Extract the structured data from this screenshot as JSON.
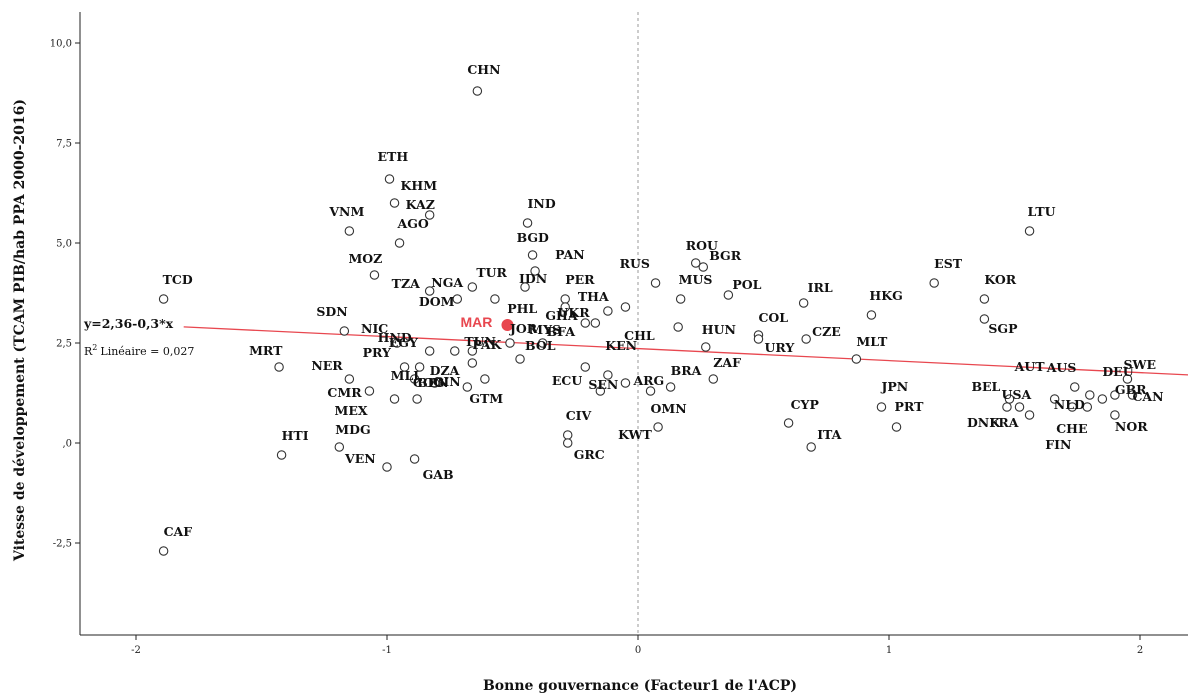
{
  "chart_data": {
    "type": "scatter",
    "xlabel": "Bonne gouvernance (Facteur1 de l'ACP)",
    "ylabel": "Vitesse de développement (TCAM PIB/hab PPA 2000-2016)",
    "xlim": [
      -2.2,
      2.2
    ],
    "ylim": [
      -4.8,
      10.6
    ],
    "xticks": [
      -2,
      -1,
      0,
      1,
      2
    ],
    "xtick_labels": [
      "-2",
      "-1",
      "0",
      "1",
      "2"
    ],
    "yticks": [
      -2.5,
      0,
      2.5,
      5,
      7.5,
      10
    ],
    "ytick_labels": [
      "-2,5",
      ",0",
      "2,5",
      "5,0",
      "7,5",
      "10,0"
    ],
    "reference_line_x": 0,
    "fit_line": {
      "intercept": 2.36,
      "slope": -0.3,
      "equation_label": "y=2,36-0,3*x",
      "r2_label": "Linéaire = 0,027",
      "r2_prefix": "R",
      "r2_sup": "2",
      "color": "#e8474f"
    },
    "highlight": {
      "label": "MAR",
      "x": -0.52,
      "y": 2.95,
      "color": "#e8474f"
    },
    "points": [
      {
        "label": "CHN",
        "x": -0.64,
        "y": 8.8
      },
      {
        "label": "ETH",
        "x": -0.99,
        "y": 6.6
      },
      {
        "label": "KHM",
        "x": -0.97,
        "y": 6.0
      },
      {
        "label": "VNM",
        "x": -1.15,
        "y": 5.3
      },
      {
        "label": "KAZ",
        "x": -0.83,
        "y": 5.7
      },
      {
        "label": "AGO",
        "x": -0.95,
        "y": 5.0
      },
      {
        "label": "MOZ",
        "x": -1.05,
        "y": 4.2
      },
      {
        "label": "TZA",
        "x": -0.83,
        "y": 3.8
      },
      {
        "label": "NGA",
        "x": -0.72,
        "y": 3.6
      },
      {
        "label": "TUR",
        "x": -0.66,
        "y": 3.9
      },
      {
        "label": "DOM",
        "x": -0.57,
        "y": 3.6
      },
      {
        "label": "IND",
        "x": -0.44,
        "y": 5.5
      },
      {
        "label": "BGD",
        "x": -0.42,
        "y": 4.7
      },
      {
        "label": "PAN",
        "x": -0.41,
        "y": 4.3
      },
      {
        "label": "IDN",
        "x": -0.45,
        "y": 3.9
      },
      {
        "label": "PER",
        "x": -0.29,
        "y": 3.6
      },
      {
        "label": "PHL",
        "x": -0.29,
        "y": 3.4
      },
      {
        "label": "RUS",
        "x": 0.07,
        "y": 4.0
      },
      {
        "label": "THA",
        "x": -0.12,
        "y": 3.3
      },
      {
        "label": "UKR",
        "x": -0.05,
        "y": 3.4
      },
      {
        "label": "MUS",
        "x": 0.17,
        "y": 3.6
      },
      {
        "label": "ROU",
        "x": 0.23,
        "y": 4.5
      },
      {
        "label": "BGR",
        "x": 0.26,
        "y": 4.4
      },
      {
        "label": "POL",
        "x": 0.36,
        "y": 3.7
      },
      {
        "label": "GHA",
        "x": -0.17,
        "y": 3.0
      },
      {
        "label": "MYS",
        "x": -0.21,
        "y": 3.0
      },
      {
        "label": "CHL",
        "x": 0.16,
        "y": 2.9
      },
      {
        "label": "SDN",
        "x": -1.17,
        "y": 2.8
      },
      {
        "label": "TCD",
        "x": -1.89,
        "y": 3.6
      },
      {
        "label": "NIC",
        "x": -0.96,
        "y": 2.5
      },
      {
        "label": "HND",
        "x": -0.83,
        "y": 2.3
      },
      {
        "label": "EGY",
        "x": -0.73,
        "y": 2.3
      },
      {
        "label": "TUN",
        "x": -0.66,
        "y": 2.3
      },
      {
        "label": "JOR",
        "x": -0.51,
        "y": 2.5
      },
      {
        "label": "BFA",
        "x": -0.38,
        "y": 2.5
      },
      {
        "label": "MRT",
        "x": -1.43,
        "y": 1.9
      },
      {
        "label": "NER",
        "x": -1.15,
        "y": 1.6
      },
      {
        "label": "PRY",
        "x": -0.93,
        "y": 1.9
      },
      {
        "label": "DZA",
        "x": -0.87,
        "y": 1.9
      },
      {
        "label": "PAK",
        "x": -0.66,
        "y": 2.0
      },
      {
        "label": "BOL",
        "x": -0.47,
        "y": 2.1
      },
      {
        "label": "KEN",
        "x": -0.21,
        "y": 1.9
      },
      {
        "label": "ECU",
        "x": -0.12,
        "y": 1.7
      },
      {
        "label": "CMR",
        "x": -1.07,
        "y": 1.3
      },
      {
        "label": "MLI",
        "x": -0.89,
        "y": 1.6
      },
      {
        "label": "COG",
        "x": -0.61,
        "y": 1.6
      },
      {
        "label": "GIN",
        "x": -0.81,
        "y": 1.5
      },
      {
        "label": "MEX",
        "x": -0.97,
        "y": 1.1
      },
      {
        "label": "GTM",
        "x": -0.68,
        "y": 1.4
      },
      {
        "label": "ARG",
        "x": -0.05,
        "y": 1.5
      },
      {
        "label": "SEN",
        "x": -0.15,
        "y": 1.3
      },
      {
        "label": "BEN",
        "x": -0.88,
        "y": 1.1
      },
      {
        "label": "BRA",
        "x": 0.13,
        "y": 1.4
      },
      {
        "label": "ZAF",
        "x": 0.3,
        "y": 1.6
      },
      {
        "label": "OMN",
        "x": 0.05,
        "y": 1.3
      },
      {
        "label": "CIV",
        "x": -0.28,
        "y": 0.2
      },
      {
        "label": "GRC",
        "x": -0.28,
        "y": 0.0
      },
      {
        "label": "KWT",
        "x": 0.08,
        "y": 0.4
      },
      {
        "label": "MDG",
        "x": -1.19,
        "y": -0.1
      },
      {
        "label": "HTI",
        "x": -1.42,
        "y": -0.3
      },
      {
        "label": "VEN",
        "x": -1.0,
        "y": -0.6
      },
      {
        "label": "GAB",
        "x": -0.89,
        "y": -0.4
      },
      {
        "label": "CAF",
        "x": -1.89,
        "y": -2.7
      },
      {
        "label": "HUN",
        "x": 0.27,
        "y": 2.4
      },
      {
        "label": "COL",
        "x": 0.48,
        "y": 2.7
      },
      {
        "label": "URY",
        "x": 0.48,
        "y": 2.6
      },
      {
        "label": "IRL",
        "x": 0.66,
        "y": 3.5
      },
      {
        "label": "CZE",
        "x": 0.67,
        "y": 2.6
      },
      {
        "label": "MLT",
        "x": 0.87,
        "y": 2.1
      },
      {
        "label": "HKG",
        "x": 0.93,
        "y": 3.2
      },
      {
        "label": "EST",
        "x": 1.18,
        "y": 4.0
      },
      {
        "label": "KOR",
        "x": 1.38,
        "y": 3.6
      },
      {
        "label": "SGP",
        "x": 1.38,
        "y": 3.1
      },
      {
        "label": "LTU",
        "x": 1.56,
        "y": 5.3
      },
      {
        "label": "CYP",
        "x": 0.6,
        "y": 0.5
      },
      {
        "label": "ITA",
        "x": 0.69,
        "y": -0.1
      },
      {
        "label": "JPN",
        "x": 0.97,
        "y": 0.9
      },
      {
        "label": "PRT",
        "x": 1.03,
        "y": 0.4
      },
      {
        "label": "BEL",
        "x": 1.48,
        "y": 1.1
      },
      {
        "label": "DNK",
        "x": 1.47,
        "y": 0.9
      },
      {
        "label": "FRA",
        "x": 1.52,
        "y": 0.9
      },
      {
        "label": "USA",
        "x": 1.56,
        "y": 0.7
      },
      {
        "label": "AUT",
        "x": 1.66,
        "y": 1.1
      },
      {
        "label": "AUS",
        "x": 1.74,
        "y": 1.4
      },
      {
        "label": "CHE",
        "x": 1.73,
        "y": 0.9
      },
      {
        "label": "FIN",
        "x": 1.79,
        "y": 0.9
      },
      {
        "label": "NLD",
        "x": 1.8,
        "y": 1.2
      },
      {
        "label": "DEU",
        "x": 1.85,
        "y": 1.1
      },
      {
        "label": "GBR",
        "x": 1.9,
        "y": 1.2
      },
      {
        "label": "NOR",
        "x": 1.9,
        "y": 0.7
      },
      {
        "label": "SWE",
        "x": 1.95,
        "y": 1.6
      },
      {
        "label": "CAN",
        "x": 1.97,
        "y": 1.2
      }
    ]
  }
}
